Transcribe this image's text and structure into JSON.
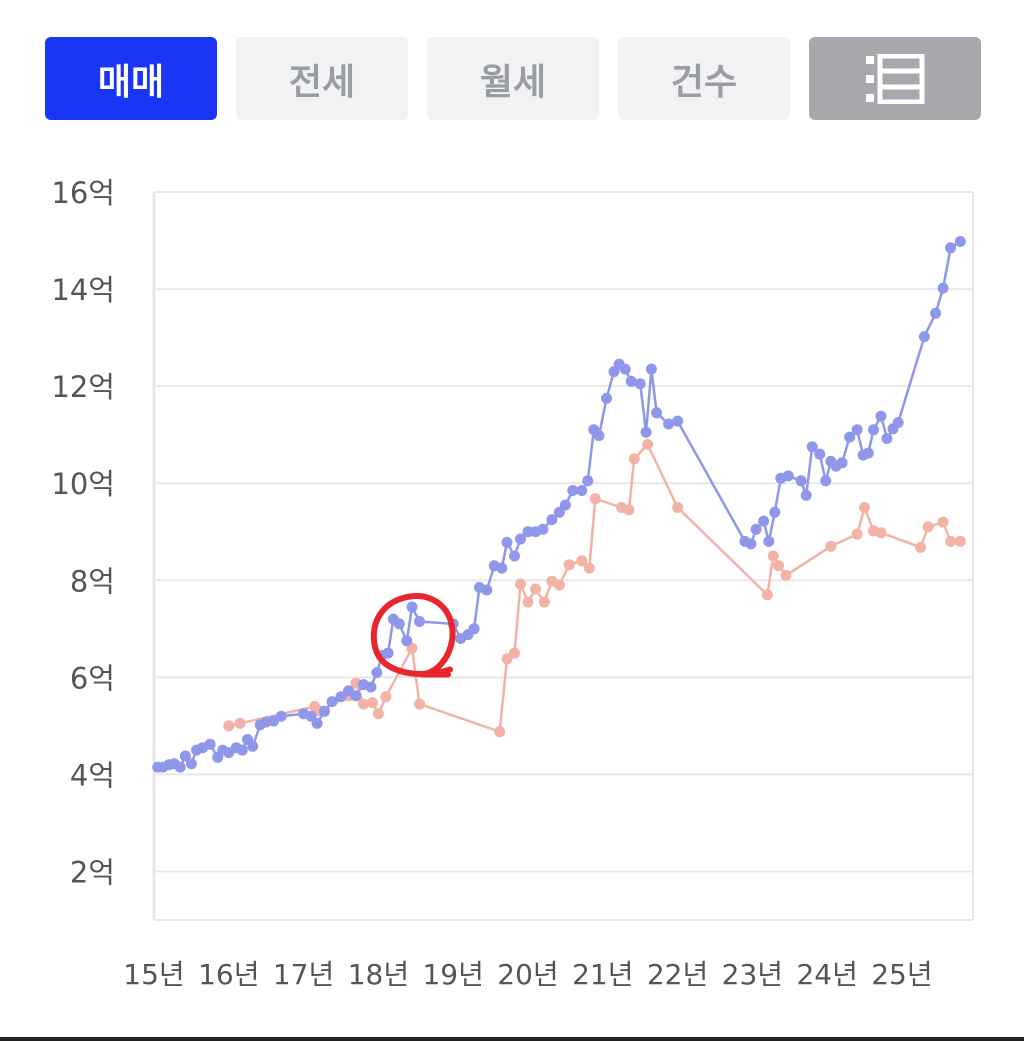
{
  "tabs": [
    {
      "label": "매매",
      "active": true
    },
    {
      "label": "전세",
      "active": false
    },
    {
      "label": "월세",
      "active": false
    },
    {
      "label": "건수",
      "active": false
    }
  ],
  "view_toggle": {
    "icon": "list-view-icon"
  },
  "colors": {
    "accent": "#1a35f5",
    "sale_series": "#8f97ea",
    "lease_series": "#f2b3a6",
    "annotation": "#e8262c",
    "grid": "#e8e8ec"
  },
  "chart_data": {
    "type": "line",
    "title": "",
    "ylim": [
      1,
      16
    ],
    "yticks": [
      {
        "value": 16,
        "label": "16억"
      },
      {
        "value": 14,
        "label": "14억"
      },
      {
        "value": 12,
        "label": "12억"
      },
      {
        "value": 10,
        "label": "10억"
      },
      {
        "value": 8,
        "label": "8억"
      },
      {
        "value": 6,
        "label": "6억"
      },
      {
        "value": 4,
        "label": "4억"
      },
      {
        "value": 2,
        "label": "2억"
      }
    ],
    "xlim": [
      2015.0,
      2025.95
    ],
    "xticks": [
      {
        "value": 2015,
        "label": "15년"
      },
      {
        "value": 2016,
        "label": "16년"
      },
      {
        "value": 2017,
        "label": "17년"
      },
      {
        "value": 2018,
        "label": "18년"
      },
      {
        "value": 2019,
        "label": "19년"
      },
      {
        "value": 2020,
        "label": "20년"
      },
      {
        "value": 2021,
        "label": "21년"
      },
      {
        "value": 2022,
        "label": "22년"
      },
      {
        "value": 2023,
        "label": "23년"
      },
      {
        "value": 2024,
        "label": "24년"
      },
      {
        "value": 2025,
        "label": "25년"
      }
    ],
    "grid": true,
    "annotation": {
      "type": "hand-drawn-circle",
      "center_x": 2018.45,
      "center_y": 6.8
    },
    "series": [
      {
        "key": "sale",
        "points": [
          [
            2015.05,
            4.15
          ],
          [
            2015.12,
            4.15
          ],
          [
            2015.2,
            4.2
          ],
          [
            2015.27,
            4.22
          ],
          [
            2015.35,
            4.15
          ],
          [
            2015.42,
            4.38
          ],
          [
            2015.5,
            4.22
          ],
          [
            2015.57,
            4.5
          ],
          [
            2015.65,
            4.55
          ],
          [
            2015.75,
            4.62
          ],
          [
            2015.85,
            4.35
          ],
          [
            2015.92,
            4.5
          ],
          [
            2016.0,
            4.45
          ],
          [
            2016.1,
            4.55
          ],
          [
            2016.18,
            4.5
          ],
          [
            2016.25,
            4.72
          ],
          [
            2016.32,
            4.58
          ],
          [
            2016.42,
            5.02
          ],
          [
            2016.5,
            5.08
          ],
          [
            2016.6,
            5.1
          ],
          [
            2016.7,
            5.2
          ],
          [
            2017.0,
            5.25
          ],
          [
            2017.1,
            5.2
          ],
          [
            2017.18,
            5.05
          ],
          [
            2017.28,
            5.3
          ],
          [
            2017.38,
            5.5
          ],
          [
            2017.5,
            5.6
          ],
          [
            2017.6,
            5.72
          ],
          [
            2017.7,
            5.62
          ],
          [
            2017.8,
            5.85
          ],
          [
            2017.9,
            5.8
          ],
          [
            2017.98,
            6.1
          ],
          [
            2018.05,
            6.45
          ],
          [
            2018.13,
            6.5
          ],
          [
            2018.2,
            7.2
          ],
          [
            2018.28,
            7.1
          ],
          [
            2018.38,
            6.75
          ],
          [
            2018.45,
            7.45
          ],
          [
            2018.55,
            7.15
          ],
          [
            2019.0,
            7.1
          ],
          [
            2019.1,
            6.8
          ],
          [
            2019.2,
            6.88
          ],
          [
            2019.28,
            7.0
          ],
          [
            2019.35,
            7.85
          ],
          [
            2019.45,
            7.8
          ],
          [
            2019.55,
            8.3
          ],
          [
            2019.65,
            8.25
          ],
          [
            2019.72,
            8.78
          ],
          [
            2019.82,
            8.5
          ],
          [
            2019.9,
            8.85
          ],
          [
            2020.0,
            9.0
          ],
          [
            2020.1,
            9.0
          ],
          [
            2020.2,
            9.05
          ],
          [
            2020.32,
            9.25
          ],
          [
            2020.42,
            9.4
          ],
          [
            2020.5,
            9.55
          ],
          [
            2020.6,
            9.85
          ],
          [
            2020.72,
            9.85
          ],
          [
            2020.8,
            10.05
          ],
          [
            2020.88,
            11.1
          ],
          [
            2020.95,
            10.98
          ],
          [
            2021.05,
            11.75
          ],
          [
            2021.15,
            12.3
          ],
          [
            2021.22,
            12.45
          ],
          [
            2021.3,
            12.35
          ],
          [
            2021.38,
            12.1
          ],
          [
            2021.5,
            12.05
          ],
          [
            2021.58,
            11.05
          ],
          [
            2021.65,
            12.35
          ],
          [
            2021.72,
            11.45
          ],
          [
            2021.88,
            11.22
          ],
          [
            2022.0,
            11.28
          ],
          [
            2022.9,
            8.8
          ],
          [
            2022.98,
            8.75
          ],
          [
            2023.05,
            9.05
          ],
          [
            2023.15,
            9.22
          ],
          [
            2023.22,
            8.8
          ],
          [
            2023.3,
            9.4
          ],
          [
            2023.38,
            10.1
          ],
          [
            2023.48,
            10.15
          ],
          [
            2023.65,
            10.05
          ],
          [
            2023.72,
            9.75
          ],
          [
            2023.8,
            10.75
          ],
          [
            2023.9,
            10.6
          ],
          [
            2023.98,
            10.05
          ],
          [
            2024.05,
            10.45
          ],
          [
            2024.12,
            10.35
          ],
          [
            2024.2,
            10.42
          ],
          [
            2024.3,
            10.95
          ],
          [
            2024.4,
            11.1
          ],
          [
            2024.48,
            10.58
          ],
          [
            2024.55,
            10.62
          ],
          [
            2024.62,
            11.1
          ],
          [
            2024.72,
            11.38
          ],
          [
            2024.8,
            10.92
          ],
          [
            2024.88,
            11.12
          ],
          [
            2024.95,
            11.25
          ],
          [
            2025.3,
            13.02
          ],
          [
            2025.45,
            13.5
          ],
          [
            2025.55,
            14.02
          ],
          [
            2025.65,
            14.85
          ],
          [
            2025.78,
            14.98
          ]
        ]
      },
      {
        "key": "lease",
        "points": [
          [
            2016.0,
            5.0
          ],
          [
            2016.15,
            5.05
          ],
          [
            2017.15,
            5.4
          ],
          [
            2017.22,
            5.3
          ],
          [
            2017.6,
            5.62
          ],
          [
            2017.7,
            5.88
          ],
          [
            2017.8,
            5.45
          ],
          [
            2017.92,
            5.48
          ],
          [
            2018.0,
            5.25
          ],
          [
            2018.1,
            5.6
          ],
          [
            2018.45,
            6.6
          ],
          [
            2018.55,
            5.45
          ],
          [
            2019.62,
            4.88
          ],
          [
            2019.72,
            6.38
          ],
          [
            2019.82,
            6.5
          ],
          [
            2019.9,
            7.92
          ],
          [
            2020.0,
            7.55
          ],
          [
            2020.1,
            7.82
          ],
          [
            2020.22,
            7.55
          ],
          [
            2020.32,
            7.98
          ],
          [
            2020.42,
            7.9
          ],
          [
            2020.55,
            8.32
          ],
          [
            2020.72,
            8.4
          ],
          [
            2020.82,
            8.25
          ],
          [
            2020.9,
            9.68
          ],
          [
            2021.25,
            9.5
          ],
          [
            2021.35,
            9.45
          ],
          [
            2021.42,
            10.5
          ],
          [
            2021.6,
            10.8
          ],
          [
            2022.0,
            9.5
          ],
          [
            2023.2,
            7.7
          ],
          [
            2023.28,
            8.5
          ],
          [
            2023.35,
            8.3
          ],
          [
            2023.45,
            8.1
          ],
          [
            2024.05,
            8.7
          ],
          [
            2024.4,
            8.95
          ],
          [
            2024.5,
            9.5
          ],
          [
            2024.62,
            9.02
          ],
          [
            2024.72,
            8.98
          ],
          [
            2025.25,
            8.68
          ],
          [
            2025.35,
            9.1
          ],
          [
            2025.55,
            9.2
          ],
          [
            2025.65,
            8.8
          ],
          [
            2025.78,
            8.8
          ]
        ]
      }
    ]
  }
}
